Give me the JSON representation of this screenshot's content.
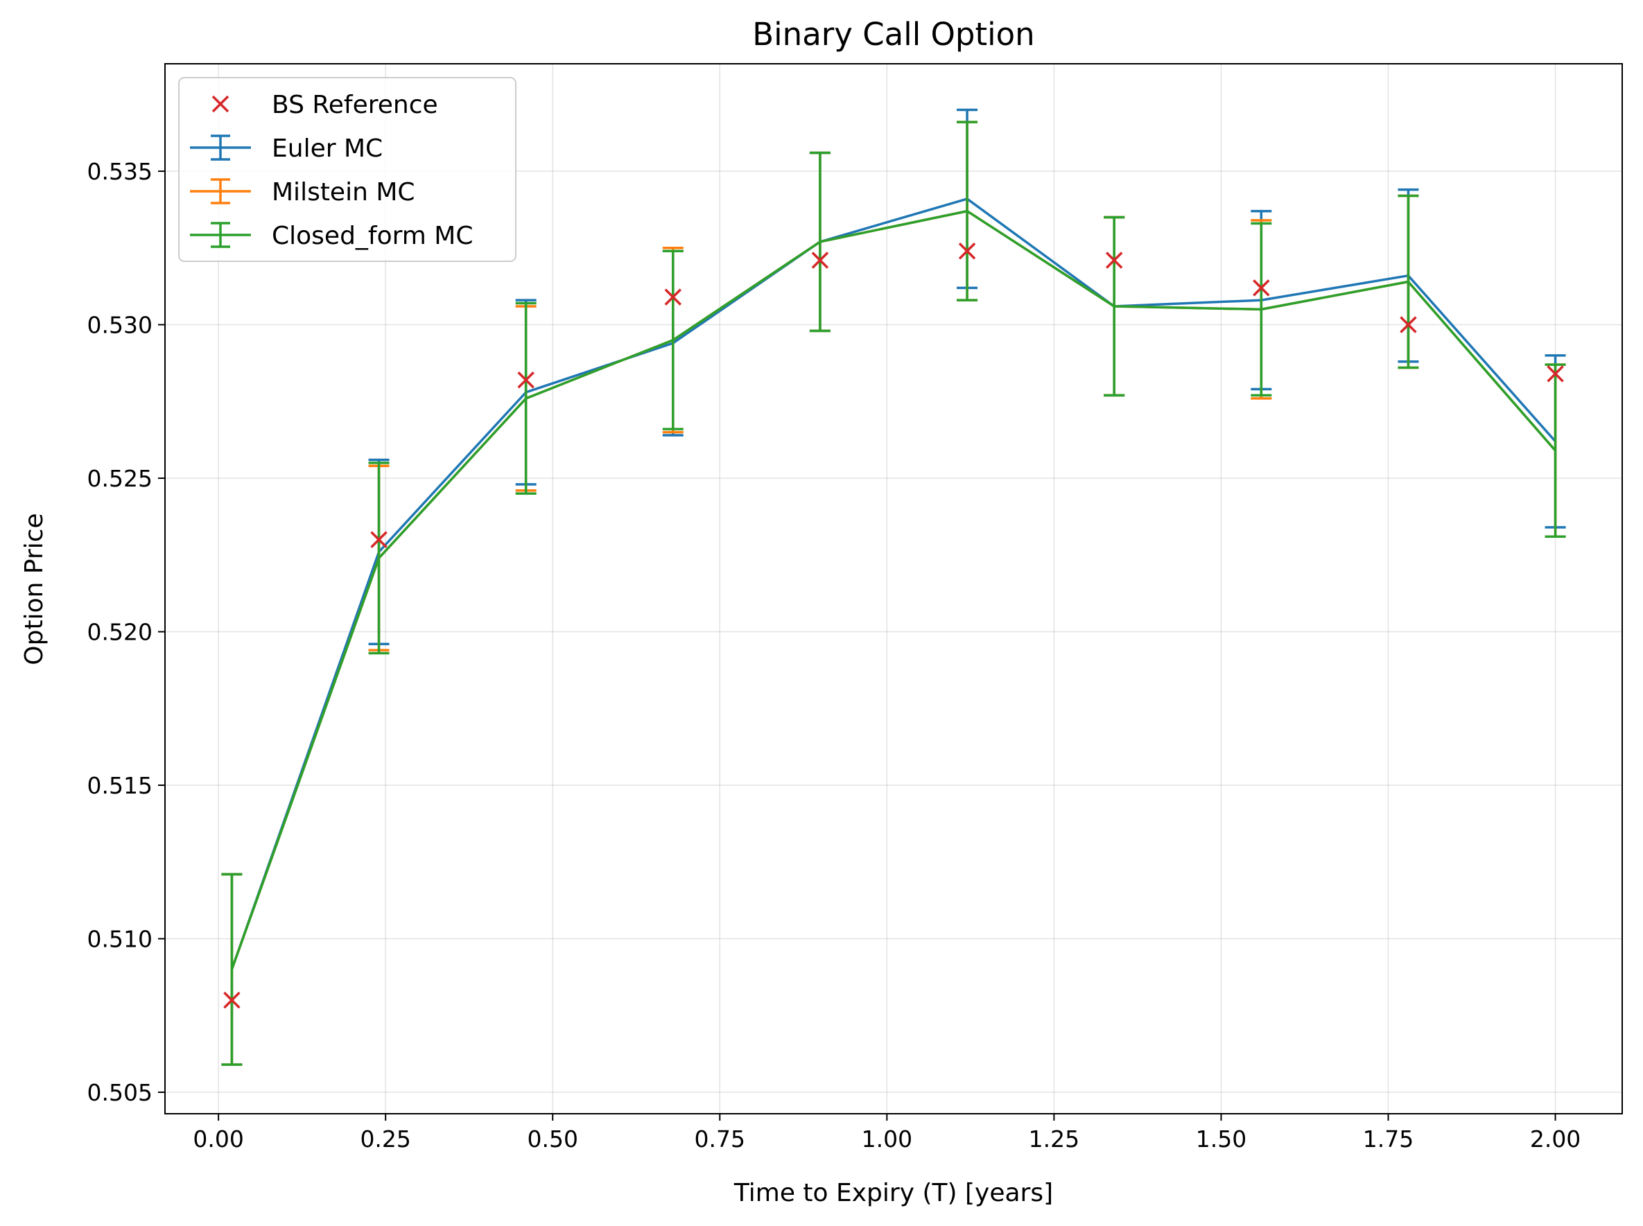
{
  "chart_data": {
    "type": "line",
    "title": "Binary Call Option",
    "xlabel": "Time to Expiry (T) [years]",
    "ylabel": "Option Price",
    "xlim": [
      -0.08,
      2.1
    ],
    "ylim": [
      0.5043,
      0.5385
    ],
    "xticks": [
      0.0,
      0.25,
      0.5,
      0.75,
      1.0,
      1.25,
      1.5,
      1.75,
      2.0
    ],
    "xtick_labels": [
      "0.00",
      "0.25",
      "0.50",
      "0.75",
      "1.00",
      "1.25",
      "1.50",
      "1.75",
      "2.00"
    ],
    "yticks": [
      0.505,
      0.51,
      0.515,
      0.52,
      0.525,
      0.53,
      0.535
    ],
    "ytick_labels": [
      "0.505",
      "0.510",
      "0.515",
      "0.520",
      "0.525",
      "0.530",
      "0.535"
    ],
    "grid": true,
    "legend_position": "top-left",
    "x": [
      0.02,
      0.24,
      0.46,
      0.68,
      0.9,
      1.12,
      1.34,
      1.56,
      1.78,
      2.0
    ],
    "reference": {
      "name": "BS Reference",
      "color": "#d62728",
      "marker": "x",
      "values": [
        0.508,
        0.523,
        0.5282,
        0.5309,
        0.5321,
        0.5324,
        0.5321,
        0.5312,
        0.53,
        0.5284
      ]
    },
    "series": [
      {
        "name": "Euler MC",
        "color": "#1f77b4",
        "values": [
          0.509,
          0.5226,
          0.5278,
          0.5294,
          0.5327,
          0.5341,
          0.5306,
          0.5308,
          0.5316,
          0.5262
        ],
        "errors": [
          0.0031,
          0.003,
          0.003,
          0.003,
          0.0029,
          0.0029,
          0.0029,
          0.0029,
          0.0028,
          0.0028
        ]
      },
      {
        "name": "Milstein MC",
        "color": "#ff7f0e",
        "values": [
          0.509,
          0.5224,
          0.5276,
          0.5295,
          0.5327,
          0.5337,
          0.5306,
          0.5305,
          0.5314,
          0.5259
        ],
        "errors": [
          0.0031,
          0.003,
          0.003,
          0.003,
          0.0029,
          0.0029,
          0.0029,
          0.0029,
          0.0028,
          0.0028
        ]
      },
      {
        "name": "Closed_form MC",
        "color": "#2ca02c",
        "values": [
          0.509,
          0.5224,
          0.5276,
          0.5295,
          0.5327,
          0.5337,
          0.5306,
          0.5305,
          0.5314,
          0.5259
        ],
        "errors": [
          0.0031,
          0.0031,
          0.0031,
          0.0029,
          0.0029,
          0.0029,
          0.0029,
          0.0028,
          0.0028,
          0.0028
        ]
      }
    ]
  }
}
